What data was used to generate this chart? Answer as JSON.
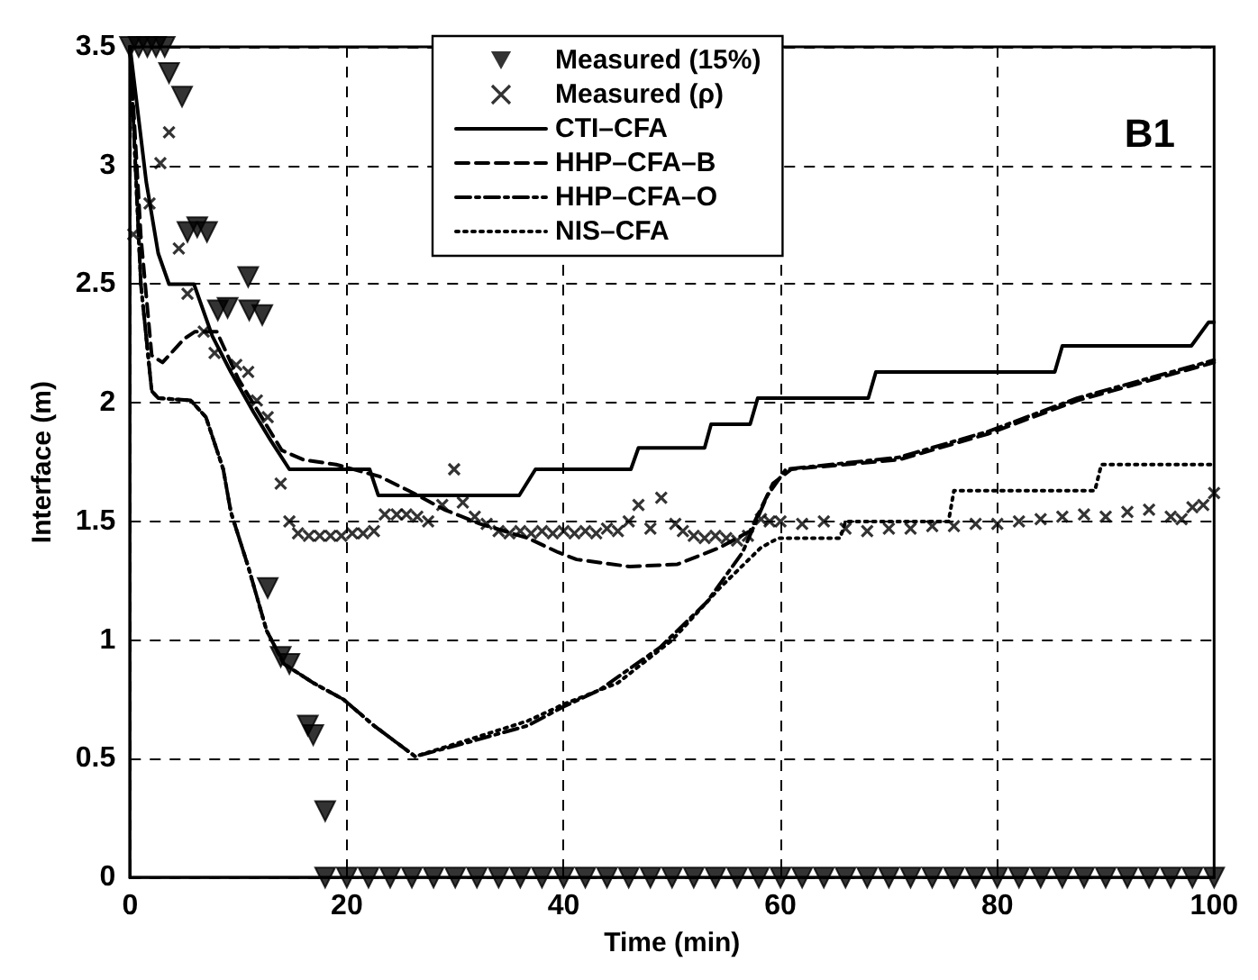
{
  "chart_data": {
    "type": "line",
    "xlabel": "Time (min)",
    "ylabel": "Interface (m)",
    "annotations": [
      "B1"
    ],
    "xlim": [
      0,
      100
    ],
    "xticks": [
      0,
      20,
      40,
      60,
      80,
      100
    ],
    "ylim": [
      0,
      3.5
    ],
    "yticks": [
      0,
      0.5,
      1,
      1.5,
      2,
      2.5,
      3,
      3.5
    ],
    "grid": true,
    "legend": "top",
    "series": [
      {
        "name": "Measured (15%)",
        "type": "scatter",
        "marker": "triangle",
        "color": "#000000",
        "x": [
          0,
          0.8,
          1.6,
          2.4,
          3.2,
          3.6,
          4.8,
          5.3,
          6.2,
          7.1,
          8.1,
          9,
          10.9,
          11,
          12.2,
          12.7,
          13.9,
          14.7,
          16.4,
          16.9,
          18,
          18,
          20,
          22,
          24,
          26,
          28,
          30,
          32,
          34,
          36,
          38,
          40,
          42,
          44,
          46,
          48,
          50,
          52,
          54,
          56,
          58,
          60,
          62,
          64,
          66,
          68,
          70,
          72,
          74,
          76,
          78,
          80,
          82,
          84,
          86,
          88,
          90,
          92,
          94,
          96,
          98,
          100
        ],
        "values": [
          3.5,
          3.5,
          3.5,
          3.5,
          3.5,
          3.39,
          3.29,
          2.72,
          2.74,
          2.72,
          2.39,
          2.4,
          2.53,
          2.39,
          2.37,
          1.22,
          0.93,
          0.9,
          0.64,
          0.6,
          0.28,
          0,
          0,
          0,
          0,
          0,
          0,
          0,
          0,
          0,
          0,
          0,
          0,
          0,
          0,
          0,
          0,
          0,
          0,
          0,
          0,
          0,
          0,
          0,
          0,
          0,
          0,
          0,
          0,
          0,
          0,
          0,
          0,
          0,
          0,
          0,
          0,
          0,
          0,
          0,
          0,
          0,
          0
        ]
      },
      {
        "name": "Measured (ρ)",
        "type": "scatter",
        "marker": "cross",
        "color": "#000000",
        "x": [
          0.3,
          1.8,
          2.8,
          3.6,
          4.5,
          5.3,
          6.8,
          7.8,
          9.8,
          10.9,
          11.7,
          12.7,
          13.9,
          14.7,
          15.5,
          16.5,
          17.5,
          18.5,
          19.5,
          20.5,
          21.5,
          22.5,
          23.5,
          24.6,
          25.5,
          26.5,
          27.5,
          28.8,
          29.9,
          30.7,
          31.8,
          32.9,
          34,
          35,
          36,
          37,
          38,
          39,
          40,
          41,
          42,
          43,
          44,
          45,
          46,
          46.9,
          48,
          49,
          50.3,
          51,
          52,
          53,
          54,
          55,
          56,
          57,
          58.2,
          59,
          60,
          62,
          64,
          66,
          68,
          70,
          72,
          74,
          76,
          78,
          80,
          82,
          84,
          86,
          88,
          90,
          92,
          94,
          96,
          97,
          98,
          99,
          100
        ],
        "values": [
          2.71,
          2.84,
          3.01,
          3.14,
          2.65,
          2.46,
          2.3,
          2.21,
          2.16,
          2.13,
          2.01,
          1.94,
          1.66,
          1.5,
          1.45,
          1.44,
          1.44,
          1.44,
          1.44,
          1.45,
          1.45,
          1.46,
          1.53,
          1.53,
          1.53,
          1.52,
          1.5,
          1.57,
          1.72,
          1.58,
          1.52,
          1.49,
          1.46,
          1.45,
          1.46,
          1.45,
          1.46,
          1.45,
          1.46,
          1.45,
          1.46,
          1.45,
          1.47,
          1.46,
          1.5,
          1.57,
          1.47,
          1.6,
          1.49,
          1.46,
          1.44,
          1.43,
          1.44,
          1.43,
          1.42,
          1.44,
          1.51,
          1.5,
          1.5,
          1.49,
          1.5,
          1.47,
          1.46,
          1.47,
          1.47,
          1.48,
          1.48,
          1.49,
          1.49,
          1.5,
          1.51,
          1.52,
          1.53,
          1.52,
          1.54,
          1.55,
          1.52,
          1.51,
          1.56,
          1.57,
          1.62
        ]
      },
      {
        "name": "CTI–CFA",
        "marker": "none",
        "line_style": "solid",
        "color": "#000000",
        "x": [
          0,
          1.5,
          2.6,
          3.6,
          5.9,
          7.6,
          9.3,
          11.4,
          13,
          14.7,
          22.1,
          22.9,
          35.9,
          37.4,
          46.2,
          46.9,
          53,
          53.6,
          57.2,
          57.9,
          68.1,
          68.8,
          85.3,
          86,
          97.9,
          99.5,
          100
        ],
        "values": [
          3.5,
          2.93,
          2.63,
          2.5,
          2.5,
          2.28,
          2.13,
          1.96,
          1.84,
          1.72,
          1.72,
          1.61,
          1.61,
          1.72,
          1.72,
          1.81,
          1.81,
          1.91,
          1.91,
          2.02,
          2.02,
          2.13,
          2.13,
          2.24,
          2.24,
          2.34,
          2.34
        ]
      },
      {
        "name": "HHP–CFA–B",
        "marker": "none",
        "line_style": "dashed",
        "color": "#000000",
        "x": [
          0,
          1,
          2,
          3,
          5,
          6,
          8,
          10,
          12,
          14,
          16,
          19,
          23,
          25.7,
          29,
          32.3,
          36.7,
          39.5,
          41.2,
          46.1,
          50.5,
          54.4,
          57.2,
          59.3,
          61,
          70.9,
          79.2,
          87.4,
          100
        ],
        "values": [
          3.5,
          2.7,
          2.2,
          2.17,
          2.27,
          2.3,
          2.3,
          2.1,
          1.95,
          1.8,
          1.76,
          1.74,
          1.69,
          1.63,
          1.55,
          1.49,
          1.43,
          1.37,
          1.34,
          1.31,
          1.32,
          1.39,
          1.46,
          1.66,
          1.72,
          1.76,
          1.87,
          2.01,
          2.17
        ]
      },
      {
        "name": "HHP–CFA–O",
        "marker": "none",
        "line_style": "dashdot",
        "color": "#000000",
        "x": [
          0,
          0.5,
          1,
          2,
          2.6,
          5.6,
          7,
          8.6,
          9.3,
          10.9,
          12.6,
          14.2,
          16.9,
          19.7,
          22.5,
          26.3,
          31.2,
          36.7,
          40,
          43.3,
          48.9,
          53.2,
          56.5,
          58.8,
          60.5,
          70.9,
          79.2,
          87.4,
          100
        ],
        "values": [
          3.5,
          3,
          2.5,
          2.05,
          2.02,
          2.01,
          1.94,
          1.72,
          1.54,
          1.31,
          1.04,
          0.9,
          0.82,
          0.75,
          0.64,
          0.51,
          0.57,
          0.64,
          0.72,
          0.79,
          0.97,
          1.16,
          1.37,
          1.61,
          1.72,
          1.77,
          1.88,
          2.02,
          2.18
        ]
      },
      {
        "name": "NIS–CFA",
        "marker": "none",
        "line_style": "dotted",
        "color": "#000000",
        "x": [
          0,
          0.5,
          1,
          2,
          2.6,
          5.6,
          7,
          8.6,
          9.3,
          10.9,
          12.6,
          14.2,
          16.9,
          19.7,
          22.5,
          26.3,
          31.2,
          36.7,
          40,
          45,
          50,
          54.4,
          58.2,
          59.8,
          65.5,
          66,
          75.5,
          76,
          89,
          89.6,
          100
        ],
        "values": [
          3.5,
          3,
          2.5,
          2.05,
          2.02,
          2.01,
          1.94,
          1.72,
          1.54,
          1.31,
          1.04,
          0.9,
          0.82,
          0.75,
          0.64,
          0.51,
          0.58,
          0.66,
          0.73,
          0.82,
          1.0,
          1.22,
          1.39,
          1.43,
          1.43,
          1.5,
          1.5,
          1.63,
          1.63,
          1.74,
          1.74
        ]
      }
    ]
  }
}
